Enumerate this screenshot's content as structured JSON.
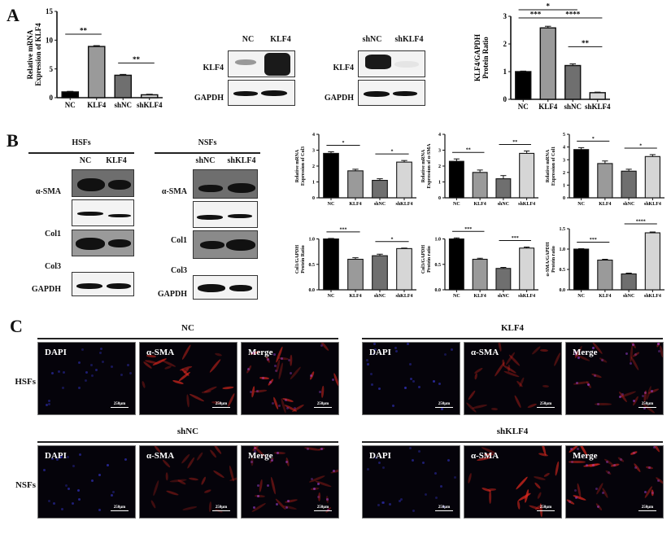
{
  "figure": {
    "panels": {
      "A": {
        "letter": "A",
        "blots": [
          {
            "lanes": [
              "NC",
              "KLF4"
            ],
            "rows": [
              "KLF4",
              "GAPDH"
            ]
          },
          {
            "lanes": [
              "shNC",
              "shKLF4"
            ],
            "rows": [
              "KLF4",
              "GAPDH"
            ]
          }
        ]
      },
      "B": {
        "letter": "B",
        "blots": [
          {
            "cell_type": "HSFs",
            "lanes": [
              "NC",
              "KLF4"
            ],
            "rows": [
              "α-SMA",
              "Col1",
              "Col3",
              "GAPDH"
            ]
          },
          {
            "cell_type": "NSFs",
            "lanes": [
              "shNC",
              "shKLF4"
            ],
            "rows": [
              "α-SMA",
              "Col1",
              "Col3",
              "GAPDH"
            ]
          }
        ]
      },
      "C": {
        "letter": "C",
        "groups": [
          {
            "title": "NC",
            "row_label": "HSFs",
            "channels": [
              "DAPI",
              "α-SMA",
              "Merge"
            ],
            "scale_bar": "250μm"
          },
          {
            "title": "KLF4",
            "row_label": "",
            "channels": [
              "DAPI",
              "α-SMA",
              "Merge"
            ],
            "scale_bar": "250μm"
          },
          {
            "title": "shNC",
            "row_label": "NSFs",
            "channels": [
              "DAPI",
              "α-SMA",
              "Merge"
            ],
            "scale_bar": "250μm"
          },
          {
            "title": "shKLF4",
            "row_label": "",
            "channels": [
              "DAPI",
              "α-SMA",
              "Merge"
            ],
            "scale_bar": "250μm"
          }
        ]
      }
    }
  },
  "colors": {
    "NC": "#000000",
    "KLF4": "#9a9a9a",
    "shNC": "#6f6f6f",
    "shKLF4": "#d6d6d6"
  },
  "chart_data": [
    {
      "id": "A-mRNA-KLF4",
      "type": "bar",
      "categories": [
        "NC",
        "KLF4",
        "shNC",
        "shKLF4"
      ],
      "values": [
        1.0,
        8.9,
        3.9,
        0.5
      ],
      "errors": [
        0.1,
        0.15,
        0.15,
        0.1
      ],
      "ylabel": "Relative mRNA Expression of KLF4",
      "ylim": [
        0,
        15
      ],
      "yticks": [
        0,
        5,
        10,
        15
      ],
      "annotations": [
        {
          "from": "NC",
          "to": "KLF4",
          "label": "**"
        },
        {
          "from": "shNC",
          "to": "shKLF4",
          "label": "**"
        }
      ]
    },
    {
      "id": "A-protein-KLF4",
      "type": "bar",
      "categories": [
        "NC",
        "KLF4",
        "shNC",
        "shKLF4"
      ],
      "values": [
        1.0,
        2.58,
        1.22,
        0.24
      ],
      "errors": [
        0.02,
        0.06,
        0.06,
        0.02
      ],
      "ylabel": "KLF4/GAPDH Protein Ratio",
      "ylim": [
        0,
        3
      ],
      "yticks": [
        0,
        1,
        2,
        3
      ],
      "annotations": [
        {
          "from": "NC",
          "to": "shNC",
          "label": "*"
        },
        {
          "from": "NC",
          "to": "KLF4",
          "label": "***"
        },
        {
          "from": "KLF4",
          "to": "shKLF4",
          "label": "****"
        },
        {
          "from": "shNC",
          "to": "shKLF4",
          "label": "**"
        }
      ]
    },
    {
      "id": "B-mRNA-Col3",
      "type": "bar",
      "categories": [
        "NC",
        "KLF4",
        "shNC",
        "shKLF4"
      ],
      "values": [
        2.8,
        1.7,
        1.1,
        2.25
      ],
      "errors": [
        0.1,
        0.1,
        0.1,
        0.1
      ],
      "ylabel": "Relative mRNA Expression of Col3",
      "ylim": [
        0,
        4
      ],
      "yticks": [
        0,
        1,
        2,
        3,
        4
      ],
      "annotations": [
        {
          "from": "NC",
          "to": "KLF4",
          "label": "*"
        },
        {
          "from": "shNC",
          "to": "shKLF4",
          "label": "*"
        }
      ]
    },
    {
      "id": "B-mRNA-aSMA",
      "type": "bar",
      "categories": [
        "NC",
        "KLF4",
        "shNC",
        "shKLF4"
      ],
      "values": [
        2.3,
        1.6,
        1.2,
        2.8
      ],
      "errors": [
        0.15,
        0.15,
        0.2,
        0.15
      ],
      "ylabel": "Relative mRNA Expression of α-SMA",
      "ylim": [
        0,
        4
      ],
      "yticks": [
        0,
        1,
        2,
        3,
        4
      ],
      "annotations": [
        {
          "from": "NC",
          "to": "KLF4",
          "label": "**"
        },
        {
          "from": "shNC",
          "to": "shKLF4",
          "label": "**"
        }
      ]
    },
    {
      "id": "B-mRNA-Col1",
      "type": "bar",
      "categories": [
        "NC",
        "KLF4",
        "shNC",
        "shKLF4"
      ],
      "values": [
        3.8,
        2.7,
        2.1,
        3.25
      ],
      "errors": [
        0.15,
        0.2,
        0.15,
        0.15
      ],
      "ylabel": "Relative mRNA Expression of Col1",
      "ylim": [
        0,
        5
      ],
      "yticks": [
        0,
        1,
        2,
        3,
        4,
        5
      ],
      "annotations": [
        {
          "from": "NC",
          "to": "KLF4",
          "label": "*"
        },
        {
          "from": "shNC",
          "to": "shKLF4",
          "label": "*"
        }
      ]
    },
    {
      "id": "B-protein-Col1",
      "type": "bar",
      "categories": [
        "NC",
        "KLF4",
        "shNC",
        "shKLF4"
      ],
      "values": [
        1.0,
        0.6,
        0.67,
        0.81
      ],
      "errors": [
        0.01,
        0.03,
        0.03,
        0.01
      ],
      "ylabel": "Col1/GAPDH Protein Ratio",
      "ylim": [
        0,
        1.2
      ],
      "yticks": [
        0.0,
        0.5,
        1.0
      ],
      "annotations": [
        {
          "from": "NC",
          "to": "KLF4",
          "label": "***"
        },
        {
          "from": "shNC",
          "to": "shKLF4",
          "label": "*"
        }
      ]
    },
    {
      "id": "B-protein-Col3",
      "type": "bar",
      "categories": [
        "NC",
        "KLF4",
        "shNC",
        "shKLF4"
      ],
      "values": [
        1.0,
        0.6,
        0.42,
        0.82
      ],
      "errors": [
        0.02,
        0.02,
        0.02,
        0.02
      ],
      "ylabel": "Col3/GAPDH Protein ratio",
      "ylim": [
        0,
        1.2
      ],
      "yticks": [
        0.0,
        0.5,
        1.0
      ],
      "annotations": [
        {
          "from": "NC",
          "to": "KLF4",
          "label": "***"
        },
        {
          "from": "shNC",
          "to": "shKLF4",
          "label": "***"
        }
      ]
    },
    {
      "id": "B-protein-aSMA",
      "type": "bar",
      "categories": [
        "NC",
        "KLF4",
        "shNC",
        "shKLF4"
      ],
      "values": [
        1.0,
        0.73,
        0.39,
        1.4
      ],
      "errors": [
        0.01,
        0.02,
        0.02,
        0.02
      ],
      "ylabel": "α-SMA/GAPDH Protein ratio",
      "ylim": [
        0,
        1.5
      ],
      "yticks": [
        0.0,
        0.5,
        1.0,
        1.5
      ],
      "annotations": [
        {
          "from": "NC",
          "to": "KLF4",
          "label": "***"
        },
        {
          "from": "shNC",
          "to": "shKLF4",
          "label": "****"
        }
      ]
    }
  ]
}
